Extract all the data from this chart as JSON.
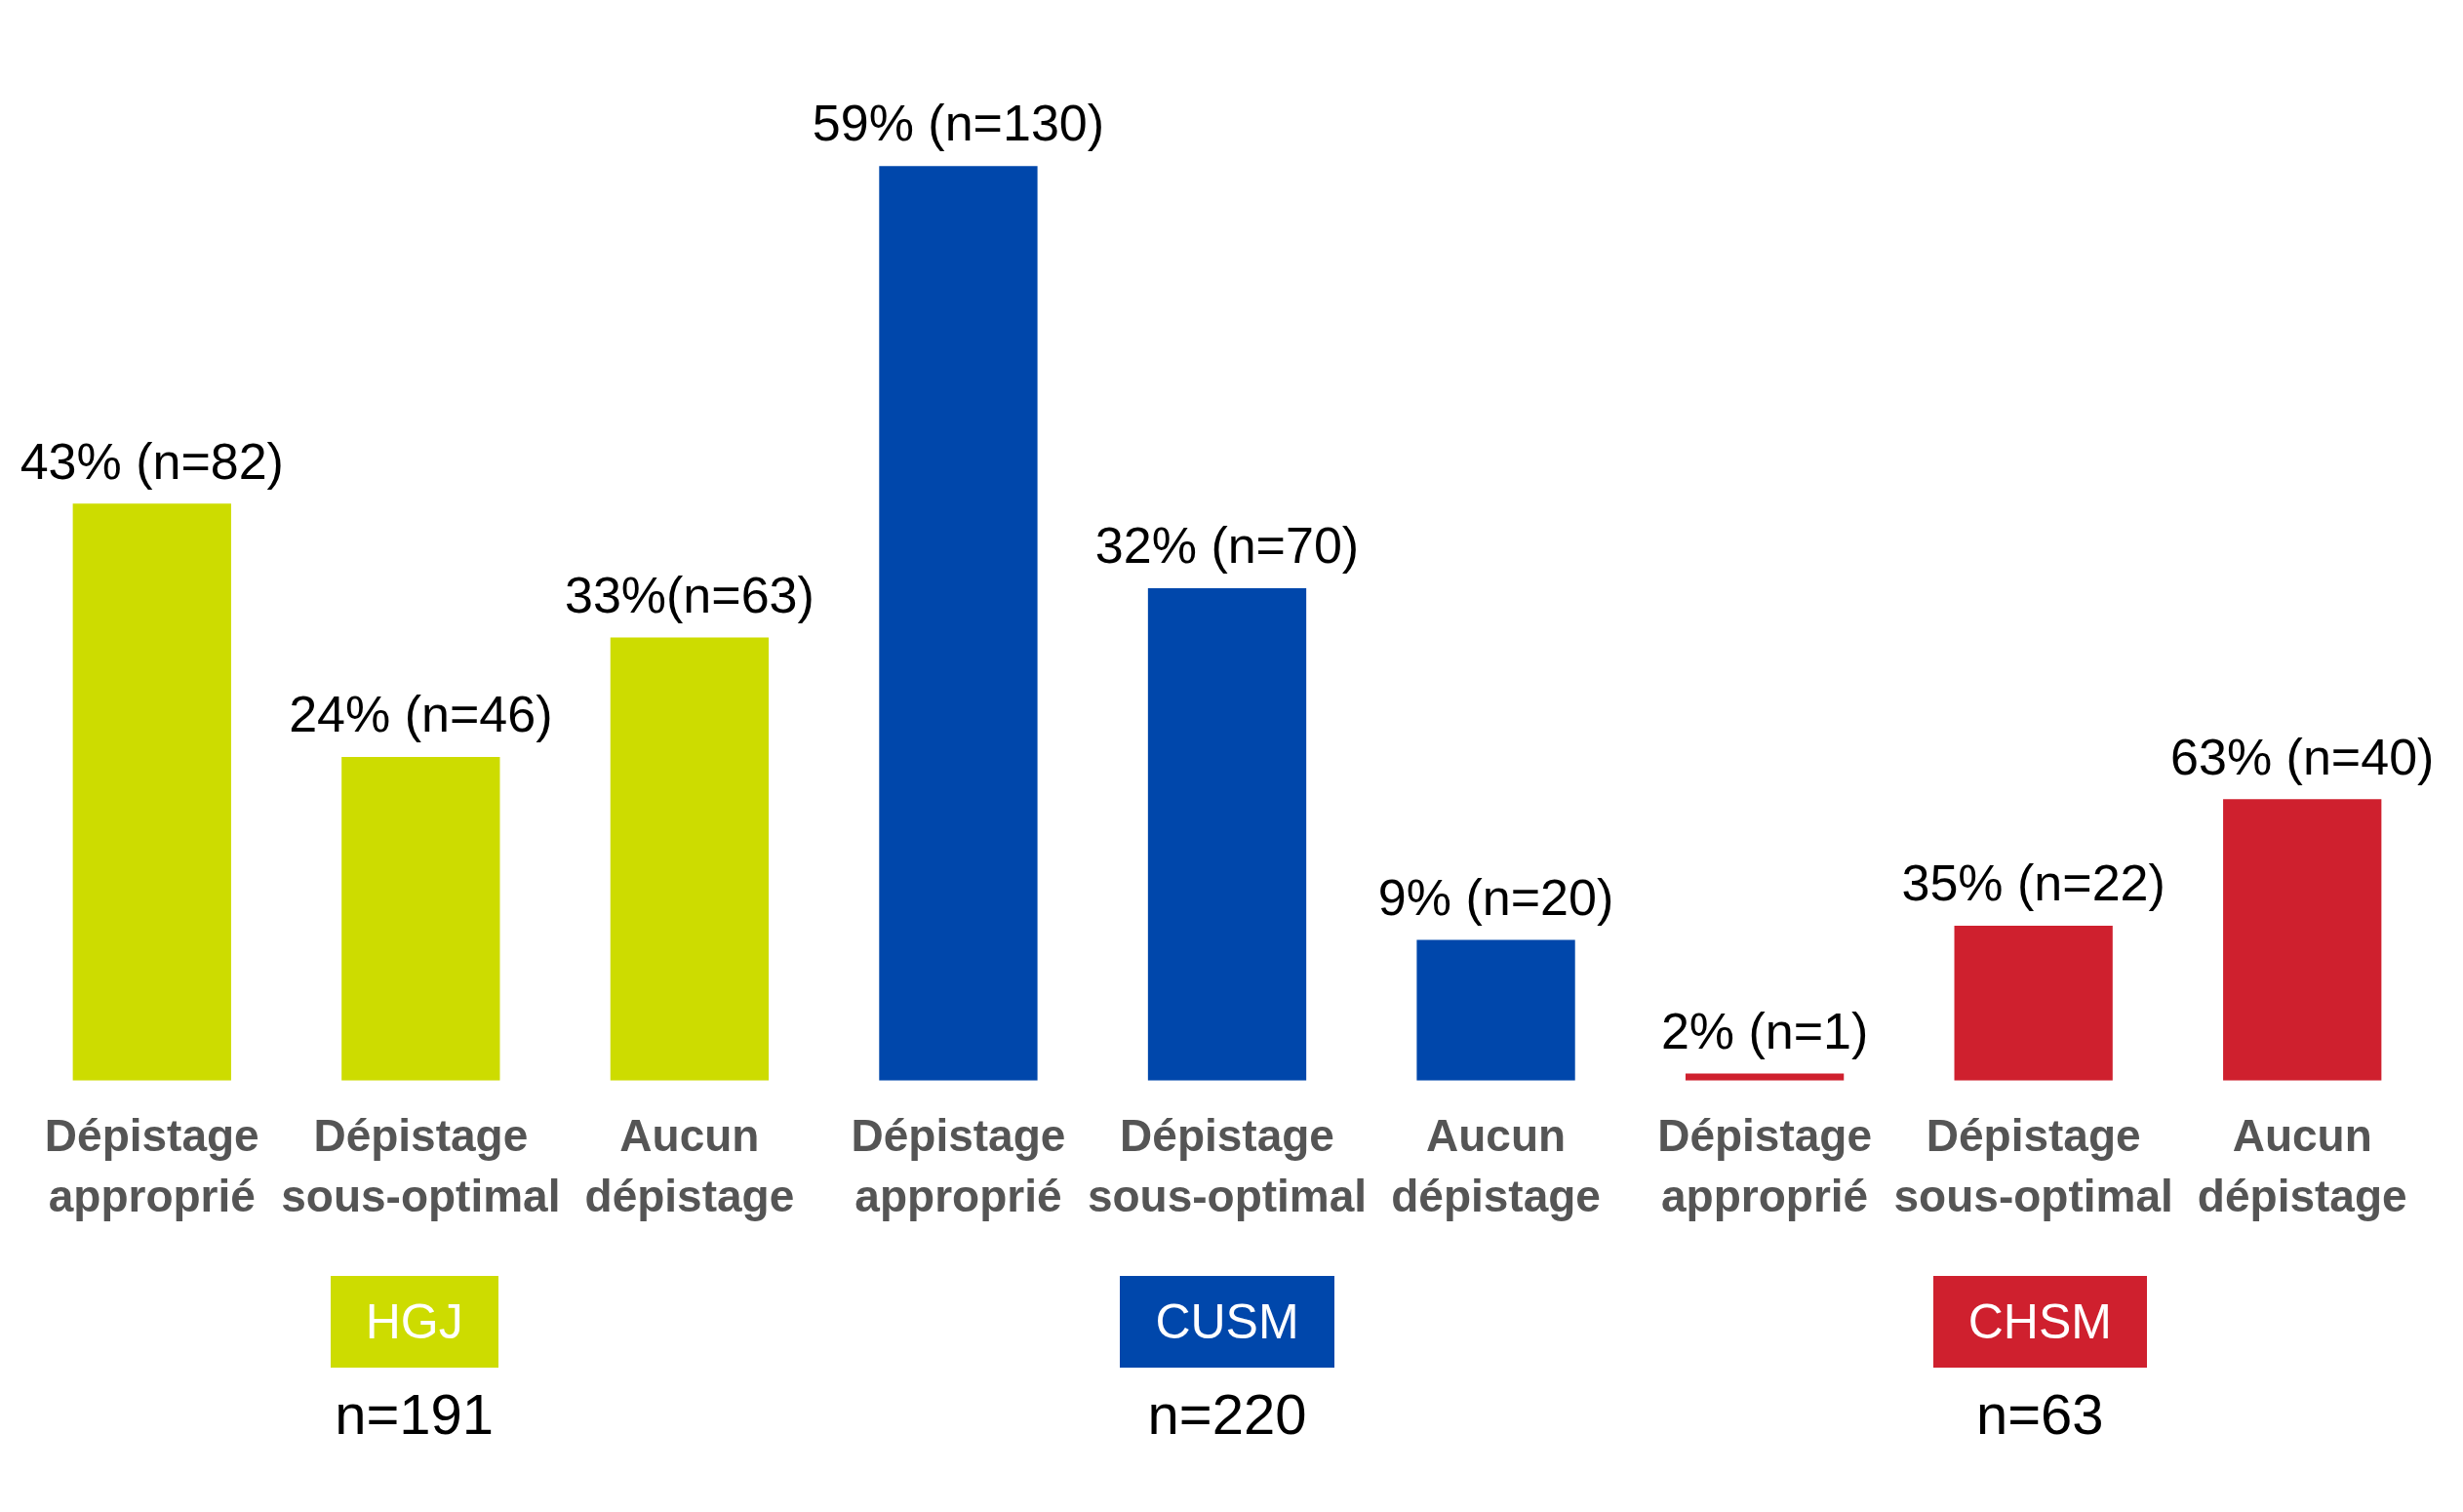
{
  "chart_data": {
    "type": "bar",
    "categories": [
      "Dépistage approprié",
      "Dépistage sous-optimal",
      "Aucun dépistage",
      "Dépistage approprié",
      "Dépistage sous-optimal",
      "Aucun dépistage",
      "Dépistage approprié",
      "Dépistage sous-optimal",
      "Aucun dépistage"
    ],
    "series": [
      {
        "name": "HGJ",
        "color": "#cddc00",
        "values": [
          82,
          46,
          63,
          null,
          null,
          null,
          null,
          null,
          null
        ],
        "value_labels": [
          "43% (n=82)",
          "24% (n=46)",
          "33%(n=63)",
          null,
          null,
          null,
          null,
          null,
          null
        ]
      },
      {
        "name": "CUSM",
        "color": "#0047ab",
        "values": [
          null,
          null,
          null,
          130,
          70,
          20,
          null,
          null,
          null
        ],
        "value_labels": [
          null,
          null,
          null,
          "59% (n=130)",
          "32% (n=70)",
          "9% (n=20)",
          null,
          null,
          null
        ]
      },
      {
        "name": "CHSM",
        "color": "#cf202e",
        "values": [
          null,
          null,
          null,
          null,
          null,
          null,
          1,
          22,
          40
        ],
        "value_labels": [
          null,
          null,
          null,
          null,
          null,
          null,
          "2% (n=1)",
          "35% (n=22)",
          "63% (n=40)"
        ]
      }
    ],
    "annotations": [
      "n=191",
      "n=220",
      "n=63"
    ],
    "grid": false,
    "legend": false
  }
}
